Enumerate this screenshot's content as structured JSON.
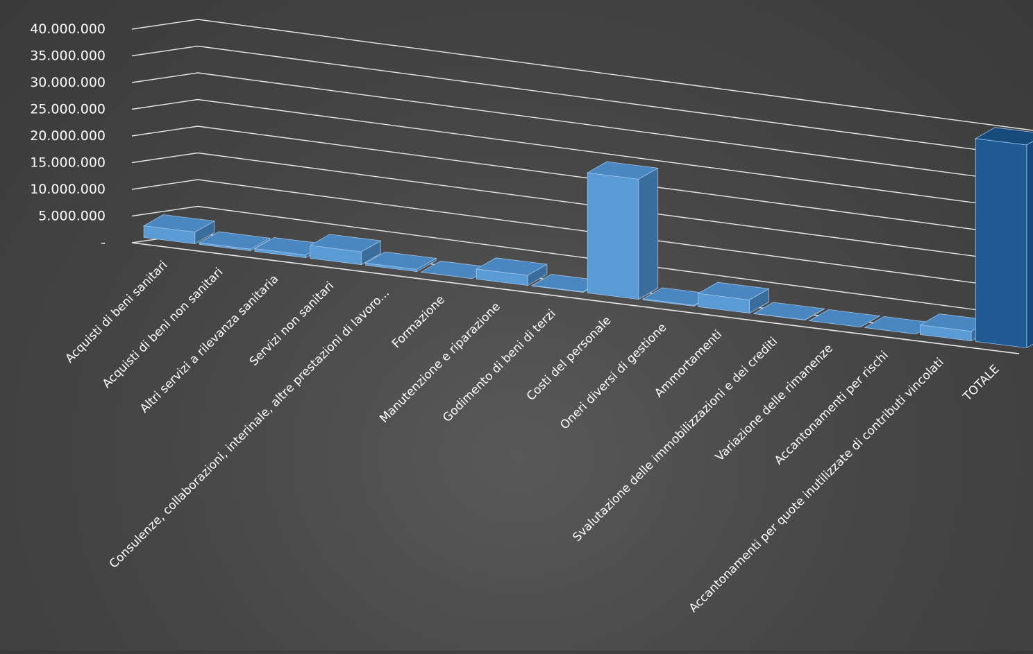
{
  "chart_data": {
    "type": "bar",
    "categories": [
      "Acquisti di beni sanitari",
      "Acquisti di beni non sanitari",
      "Altri servizi a rilevanza sanitaria",
      "Servizi non sanitari",
      "Consulenze, collaborazioni, interinale, altre prestazioni di lavoro...",
      "Formazione",
      "Manutenzione e riparazione",
      "Godimento di beni di terzi",
      "Costi del personale",
      "Oneri diversi di gestione",
      "Ammortamenti",
      "Svalutazione delle immobilizzazioni e dei crediti",
      "Variazione delle rimanenze",
      "Accantonamenti per rischi",
      "Accantonamenti per quote inutilizzate di contributi vincolati",
      "TOTALE"
    ],
    "values": [
      2200000,
      300000,
      500000,
      2400000,
      400000,
      0,
      1900000,
      100000,
      22500000,
      200000,
      2500000,
      50000,
      0,
      0,
      1800000,
      38000000
    ],
    "yticks": [
      "40.000.000",
      "35.000.000",
      "30.000.000",
      "25.000.000",
      "20.000.000",
      "15.000.000",
      "10.000.000",
      "5.000.000",
      "-"
    ],
    "ylim": [
      0,
      40000000
    ],
    "grid": true,
    "style": "3d-column",
    "colors": {
      "bar_front": "#5b9bd5",
      "bar_top": "#4a86bf",
      "bar_side": "#3a6d9c",
      "total_front": "#1f5a94",
      "total_top": "#174a7c",
      "total_side": "#16497a",
      "grid": "#e8e8e8",
      "text": "#ffffff",
      "edge": "#9cc4ea"
    }
  }
}
